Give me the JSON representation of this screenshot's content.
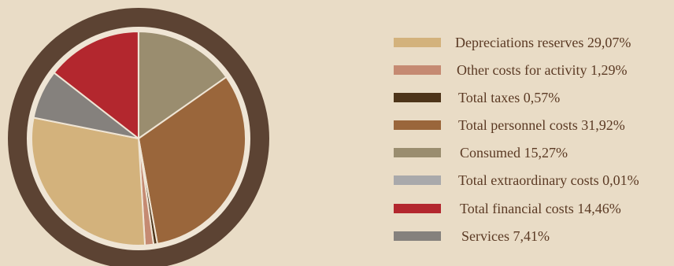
{
  "chart_data": {
    "type": "pie",
    "title": "",
    "slices": [
      {
        "label": "Depreciations reserves 29,07%",
        "value": 29.07,
        "color": "#d3b27c"
      },
      {
        "label": "Other costs for activity 1,29%",
        "value": 1.29,
        "color": "#c58a72"
      },
      {
        "label": "Total taxes 0,57%",
        "value": 0.57,
        "color": "#4d3419"
      },
      {
        "label": "Total personnel costs 31,92%",
        "value": 31.92,
        "color": "#9a663b"
      },
      {
        "label": "Consumed 15,27%",
        "value": 15.27,
        "color": "#9a8d6f"
      },
      {
        "label": "Total extraordinary costs 0,01%",
        "value": 0.01,
        "color": "#a9a9ab"
      },
      {
        "label": "Total financial costs 14,46%",
        "value": 14.46,
        "color": "#b3272e"
      },
      {
        "label": "Services 7,41%",
        "value": 7.41,
        "color": "#85817d"
      }
    ],
    "draw_order": [
      4,
      3,
      2,
      1,
      0,
      7,
      6,
      5
    ],
    "legend": "right"
  },
  "colors": {
    "background": "#e9dcc6",
    "ring": "#5c4333",
    "separator": "#efe5d5",
    "legend_text": "#5b3a24"
  }
}
